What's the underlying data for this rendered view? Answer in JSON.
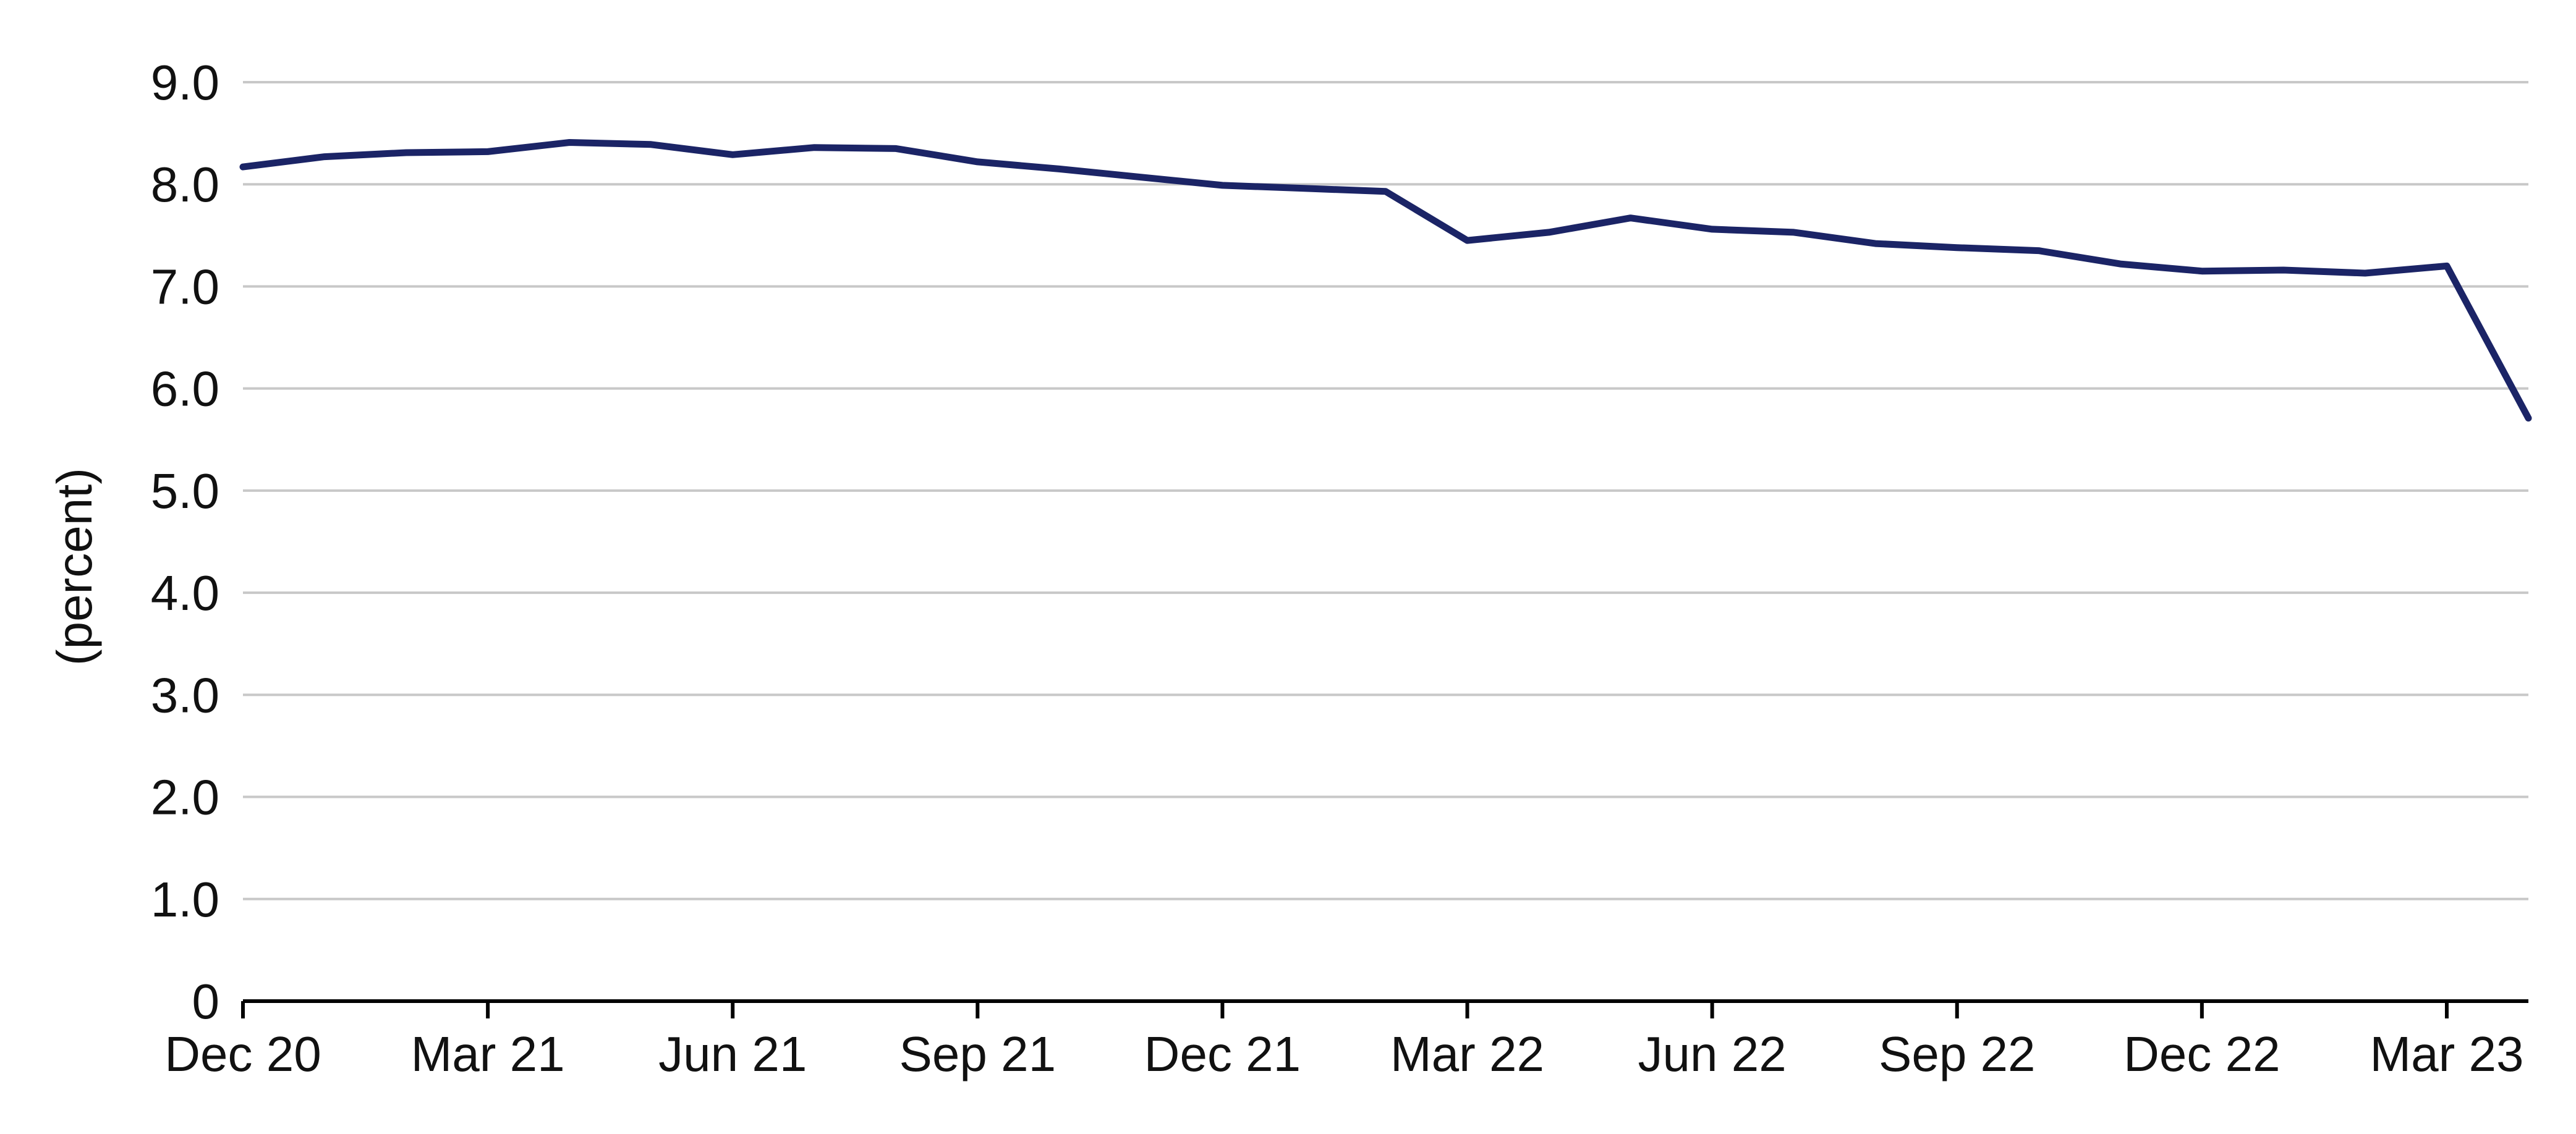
{
  "chart_data": {
    "type": "line",
    "title": "",
    "xlabel": "",
    "ylabel": "(percent)",
    "ylim": [
      0,
      9
    ],
    "yticks": [
      "0",
      "1.0",
      "2.0",
      "3.0",
      "4.0",
      "5.0",
      "6.0",
      "7.0",
      "8.0",
      "9.0"
    ],
    "ytick_values": [
      0,
      1,
      2,
      3,
      4,
      5,
      6,
      7,
      8,
      9
    ],
    "xlim": [
      "2020-12",
      "2023-04"
    ],
    "xticks": [
      "Dec 20",
      "Mar 21",
      "Jun 21",
      "Sep 21",
      "Dec 21",
      "Mar 22",
      "Jun 22",
      "Sep 22",
      "Dec 22",
      "Mar 23"
    ],
    "xtick_dates": [
      "2020-12",
      "2021-03",
      "2021-06",
      "2021-09",
      "2021-12",
      "2022-03",
      "2022-06",
      "2022-09",
      "2022-12",
      "2023-03"
    ],
    "grid": "horizontal",
    "legend": "none",
    "series": [
      {
        "color": "#1b2466",
        "x": [
          "2020-12",
          "2021-01",
          "2021-02",
          "2021-03",
          "2021-04",
          "2021-05",
          "2021-06",
          "2021-07",
          "2021-08",
          "2021-09",
          "2021-10",
          "2021-11",
          "2021-12",
          "2022-01",
          "2022-02",
          "2022-03",
          "2022-04",
          "2022-05",
          "2022-06",
          "2022-07",
          "2022-08",
          "2022-09",
          "2022-10",
          "2022-11",
          "2022-12",
          "2023-01",
          "2023-02",
          "2023-03",
          "2023-04"
        ],
        "values": [
          8.17,
          8.27,
          8.31,
          8.32,
          8.41,
          8.39,
          8.29,
          8.36,
          8.35,
          8.22,
          8.15,
          8.07,
          7.99,
          7.96,
          7.93,
          7.45,
          7.53,
          7.67,
          7.56,
          7.53,
          7.42,
          7.38,
          7.35,
          7.22,
          7.15,
          7.16,
          7.13,
          7.2,
          5.71
        ]
      }
    ]
  }
}
